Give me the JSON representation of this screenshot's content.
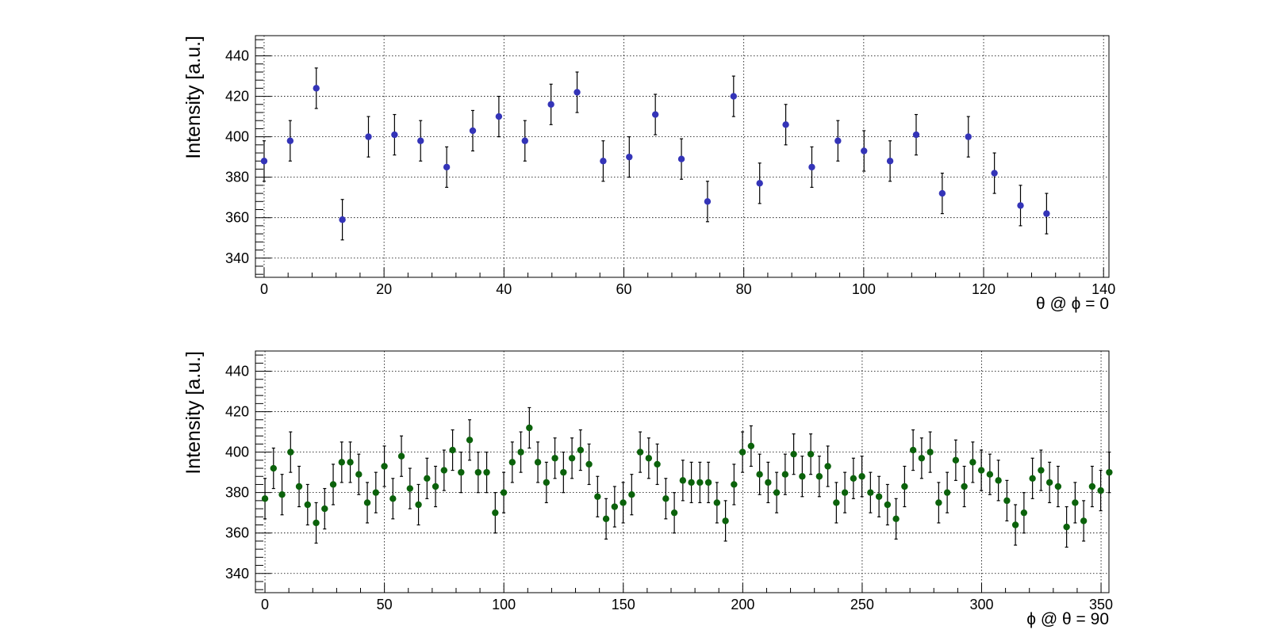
{
  "chart_data": [
    {
      "type": "scatter",
      "x_label": "θ @ ϕ = 0",
      "y_label": "Intensity [a.u.]",
      "color": "#3434b8",
      "grid": true,
      "xlim": [
        -1.45,
        140.9
      ],
      "ylim": [
        330.5,
        450
      ],
      "xticks": [
        0,
        20,
        40,
        60,
        80,
        100,
        120,
        140
      ],
      "yticks": [
        340,
        360,
        380,
        400,
        420,
        440
      ],
      "error": 10,
      "x": [
        0,
        4.35,
        8.7,
        13.05,
        17.4,
        21.75,
        26.1,
        30.45,
        34.8,
        39.15,
        43.5,
        47.85,
        52.2,
        56.55,
        60.9,
        65.25,
        69.6,
        73.95,
        78.3,
        82.65,
        87,
        91.35,
        95.7,
        100.05,
        104.4,
        108.75,
        113.1,
        117.45,
        121.8,
        126.15,
        130.5
      ],
      "values": [
        388,
        398,
        424,
        359,
        400,
        401,
        398,
        385,
        403,
        410,
        398,
        416,
        422,
        388,
        390,
        411,
        389,
        368,
        420,
        377,
        406,
        385,
        398,
        393,
        388,
        401,
        372,
        400,
        382,
        366,
        362
      ]
    },
    {
      "type": "scatter",
      "x_label": "ϕ @ θ = 90",
      "y_label": "Intensity [a.u.]",
      "color": "#0b620b",
      "grid": true,
      "xlim": [
        -4,
        353.3
      ],
      "ylim": [
        330.5,
        450
      ],
      "xticks": [
        0,
        50,
        100,
        150,
        200,
        250,
        300,
        350
      ],
      "yticks": [
        340,
        360,
        380,
        400,
        420,
        440
      ],
      "error": 10,
      "x": [
        0,
        3.57,
        7.14,
        10.71,
        14.28,
        17.85,
        21.42,
        24.99,
        28.56,
        32.13,
        35.7,
        39.27,
        42.84,
        46.41,
        49.98,
        53.55,
        57.12,
        60.69,
        64.26,
        67.83,
        71.4,
        74.97,
        78.54,
        82.11,
        85.68,
        89.25,
        92.82,
        96.39,
        99.96,
        103.53,
        107.1,
        110.67,
        114.24,
        117.81,
        121.38,
        124.95,
        128.52,
        132.09,
        135.66,
        139.23,
        142.8,
        146.37,
        149.94,
        153.51,
        157.08,
        160.65,
        164.22,
        167.79,
        171.36,
        174.93,
        178.5,
        182.07,
        185.64,
        189.21,
        192.78,
        196.35,
        199.92,
        203.49,
        207.06,
        210.63,
        214.2,
        217.77,
        221.34,
        224.91,
        228.48,
        232.05,
        235.62,
        239.19,
        242.76,
        246.33,
        249.9,
        253.47,
        257.04,
        260.61,
        264.18,
        267.75,
        271.32,
        274.89,
        278.46,
        282.03,
        285.6,
        289.17,
        292.74,
        296.31,
        299.88,
        303.45,
        307.02,
        310.59,
        314.16,
        317.73,
        321.3,
        324.87,
        328.44,
        332.01,
        335.58,
        339.15,
        342.72,
        346.29,
        349.86,
        353.43
      ],
      "values": [
        377,
        392,
        379,
        400,
        383,
        374,
        365,
        372,
        384,
        395,
        395,
        389,
        375,
        380,
        393,
        377,
        398,
        382,
        374,
        387,
        383,
        391,
        401,
        390,
        406,
        390,
        390,
        370,
        380,
        395,
        400,
        412,
        395,
        385,
        397,
        390,
        397,
        401,
        394,
        378,
        367,
        373,
        375,
        379,
        400,
        397,
        394,
        377,
        370,
        386,
        385,
        385,
        385,
        375,
        366,
        384,
        400,
        403,
        389,
        385,
        380,
        389,
        399,
        388,
        399,
        388,
        393,
        375,
        380,
        387,
        388,
        380,
        378,
        374,
        367,
        383,
        401,
        397,
        400,
        375,
        380,
        396,
        383,
        395,
        391,
        389,
        386,
        376,
        364,
        370,
        387,
        391,
        385,
        383,
        363,
        375,
        366,
        383,
        381,
        390
      ]
    }
  ]
}
